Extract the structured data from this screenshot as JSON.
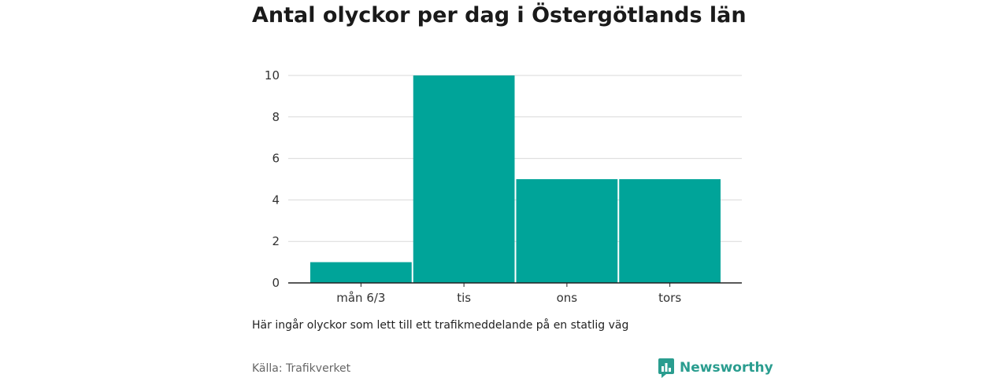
{
  "title": "Antal olyckor per dag i Östergötlands län",
  "note": "Här ingår olyckor som lett till ett trafikmeddelande på en statlig väg",
  "source": "Källa: Trafikverket",
  "brand": {
    "name": "Newsworthy",
    "icon": "newsworthy-logo-icon"
  },
  "colors": {
    "bar": "#00a499",
    "grid": "#d9d9d9",
    "axis": "#222222",
    "brand": "#2a9d8f"
  },
  "chart_data": {
    "type": "bar",
    "title": "Antal olyckor per dag i Östergötlands län",
    "categories": [
      "mån 6/3",
      "tis",
      "ons",
      "tors"
    ],
    "values": [
      1,
      10,
      5,
      5
    ],
    "xlabel": "",
    "ylabel": "",
    "ylim": [
      0,
      10
    ],
    "yticks": [
      0,
      2,
      4,
      6,
      8,
      10
    ],
    "grid": true,
    "legend": "none"
  }
}
